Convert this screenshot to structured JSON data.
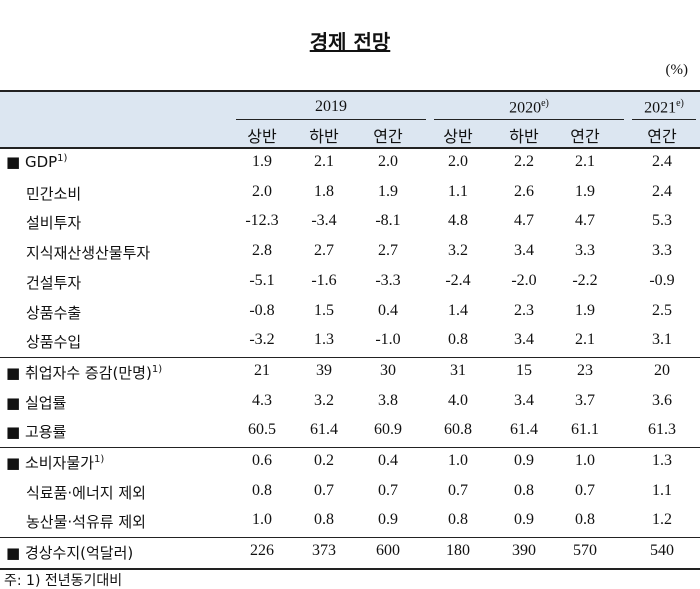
{
  "header": {
    "title": "경제 전망",
    "unit": "(%)"
  },
  "table": {
    "years": [
      {
        "label": "2019",
        "span": 3
      },
      {
        "label": "2020",
        "sup": "e)",
        "span": 3
      },
      {
        "label": "2021",
        "sup": "e)",
        "span": 1
      }
    ],
    "subheaders": [
      "상반",
      "하반",
      "연간",
      "상반",
      "하반",
      "연간",
      "연간"
    ],
    "groups": [
      {
        "rows": [
          {
            "label": "■ GDP",
            "note": "1)",
            "values": [
              "1.9",
              "2.1",
              "2.0",
              "2.0",
              "2.2",
              "2.1",
              "2.4"
            ]
          },
          {
            "label": "민간소비",
            "values": [
              "2.0",
              "1.8",
              "1.9",
              "1.1",
              "2.6",
              "1.9",
              "2.4"
            ]
          },
          {
            "label": "설비투자",
            "values": [
              "-12.3",
              "-3.4",
              "-8.1",
              "4.8",
              "4.7",
              "4.7",
              "5.3"
            ]
          },
          {
            "label": "지식재산생산물투자",
            "values": [
              "2.8",
              "2.7",
              "2.7",
              "3.2",
              "3.4",
              "3.3",
              "3.3"
            ]
          },
          {
            "label": "건설투자",
            "values": [
              "-5.1",
              "-1.6",
              "-3.3",
              "-2.4",
              "-2.0",
              "-2.2",
              "-0.9"
            ]
          },
          {
            "label": "상품수출",
            "values": [
              "-0.8",
              "1.5",
              "0.4",
              "1.4",
              "2.3",
              "1.9",
              "2.5"
            ]
          },
          {
            "label": "상품수입",
            "values": [
              "-3.2",
              "1.3",
              "-1.0",
              "0.8",
              "3.4",
              "2.1",
              "3.1"
            ]
          }
        ]
      },
      {
        "rows": [
          {
            "label": "■ 취업자수 증감(만명)",
            "note": "1)",
            "values": [
              "21",
              "39",
              "30",
              "31",
              "15",
              "23",
              "20"
            ]
          },
          {
            "label": "■ 실업률",
            "values": [
              "4.3",
              "3.2",
              "3.8",
              "4.0",
              "3.4",
              "3.7",
              "3.6"
            ]
          },
          {
            "label": "■ 고용률",
            "values": [
              "60.5",
              "61.4",
              "60.9",
              "60.8",
              "61.4",
              "61.1",
              "61.3"
            ]
          }
        ]
      },
      {
        "rows": [
          {
            "label": "■ 소비자물가",
            "note": "1)",
            "values": [
              "0.6",
              "0.2",
              "0.4",
              "1.0",
              "0.9",
              "1.0",
              "1.3"
            ]
          },
          {
            "label": "식료품·에너지 제외",
            "values": [
              "0.8",
              "0.7",
              "0.7",
              "0.7",
              "0.8",
              "0.7",
              "1.1"
            ]
          },
          {
            "label": "농산물·석유류 제외",
            "values": [
              "1.0",
              "0.8",
              "0.9",
              "0.8",
              "0.9",
              "0.8",
              "1.2"
            ]
          }
        ]
      },
      {
        "rows": [
          {
            "label": "■ 경상수지(억달러)",
            "values": [
              "226",
              "373",
              "600",
              "180",
              "390",
              "570",
              "540"
            ]
          }
        ]
      }
    ]
  },
  "footnote": "주: 1) 전년동기대비"
}
